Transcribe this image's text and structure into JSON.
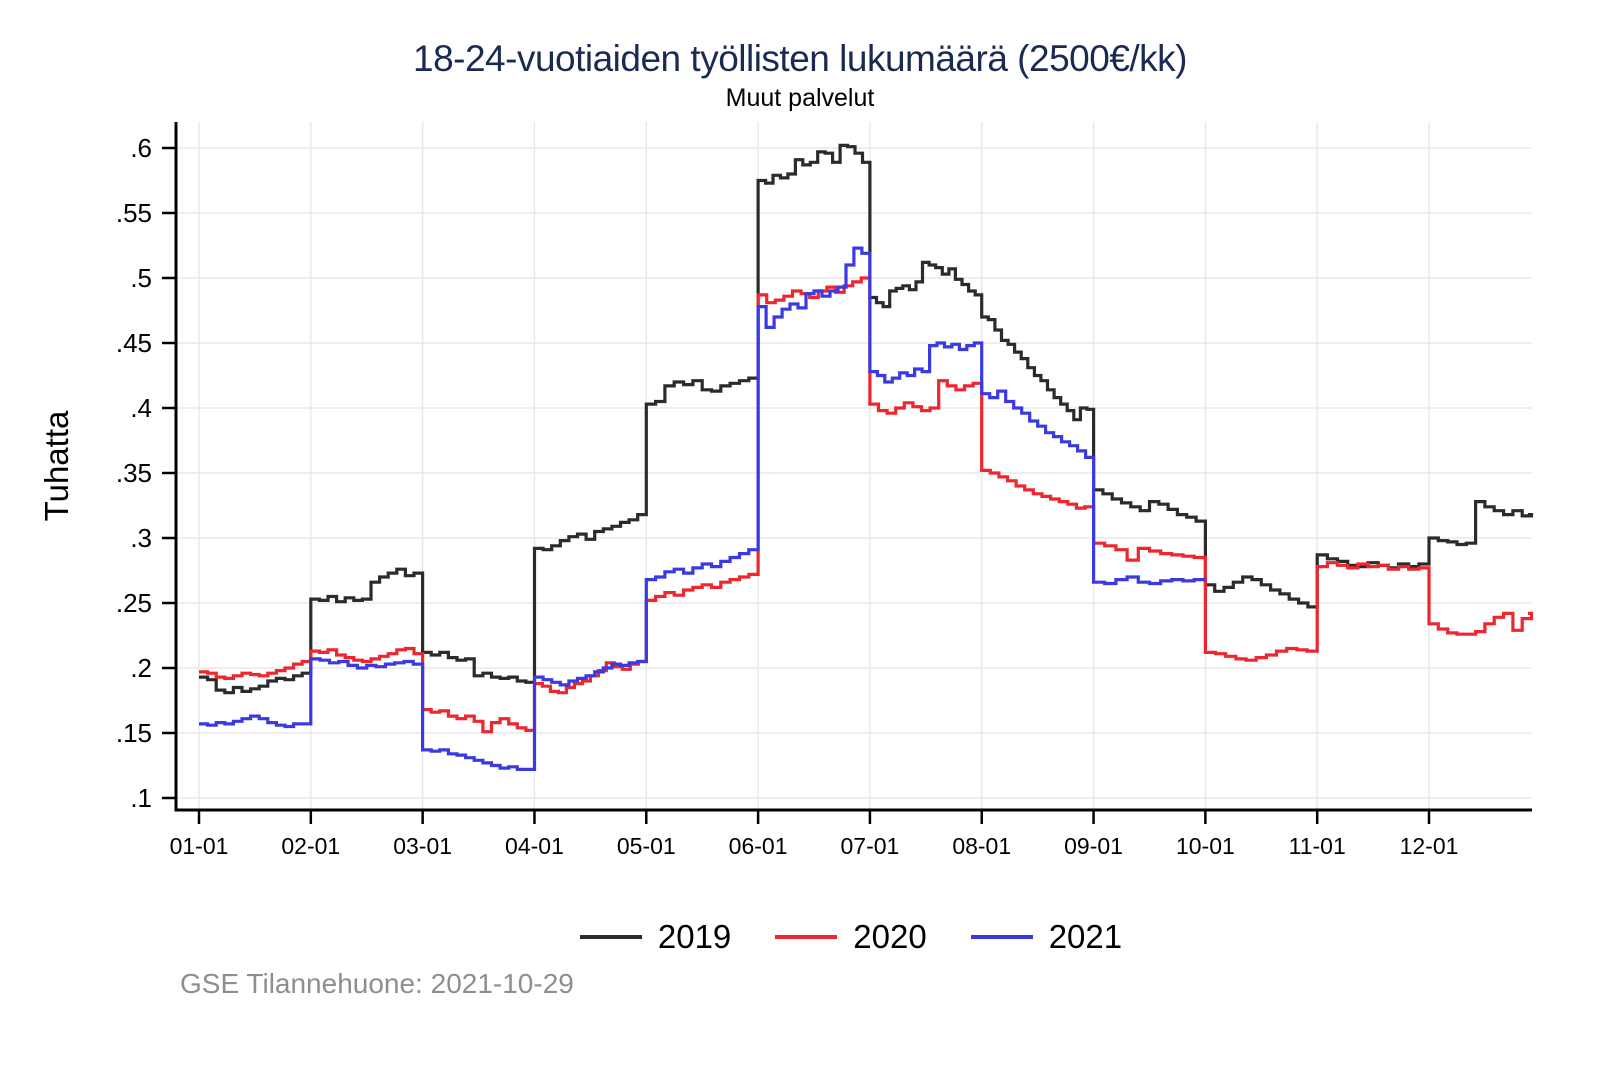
{
  "chart_data": {
    "type": "line",
    "title": "18-24-vuotiaiden työllisten lukumäärä (2500€/kk)",
    "subtitle": "Muut palvelut",
    "ylabel": "Tuhatta",
    "xlabel": "",
    "grid": true,
    "legend_position": "bottom",
    "ylim": [
      0.1,
      0.6
    ],
    "y_ticks": [
      0.6,
      0.55,
      0.5,
      0.45,
      0.4,
      0.35,
      0.3,
      0.25,
      0.2,
      0.15,
      0.1
    ],
    "y_tick_labels": [
      ".6",
      ".55",
      ".5",
      ".45",
      ".4",
      ".35",
      ".3",
      ".25",
      ".2",
      ".15",
      ".1"
    ],
    "x_tick_labels": [
      "01-01",
      "02-01",
      "03-01",
      "04-01",
      "05-01",
      "06-01",
      "07-01",
      "08-01",
      "09-01",
      "10-01",
      "11-01",
      "12-01"
    ],
    "series": [
      {
        "name": "2019",
        "color": "#2b2b2b",
        "months": [
          [
            0.193,
            0.191,
            0.183,
            0.181,
            0.185,
            0.182,
            0.184,
            0.186,
            0.19,
            0.192,
            0.191,
            0.194,
            0.196
          ],
          [
            0.253,
            0.252,
            0.255,
            0.251,
            0.254,
            0.252,
            0.253,
            0.266,
            0.27,
            0.273,
            0.276,
            0.271,
            0.273
          ],
          [
            0.212,
            0.21,
            0.212,
            0.208,
            0.206,
            0.207,
            0.194,
            0.196,
            0.193,
            0.192,
            0.193,
            0.19,
            0.189
          ],
          [
            0.292,
            0.291,
            0.294,
            0.298,
            0.301,
            0.303,
            0.299,
            0.305,
            0.307,
            0.309,
            0.312,
            0.314,
            0.318
          ],
          [
            0.403,
            0.405,
            0.417,
            0.42,
            0.418,
            0.421,
            0.414,
            0.413,
            0.417,
            0.419,
            0.421,
            0.423
          ],
          [
            0.575,
            0.573,
            0.579,
            0.577,
            0.58,
            0.591,
            0.587,
            0.589,
            0.597,
            0.596,
            0.589,
            0.602,
            0.601,
            0.596,
            0.589
          ],
          [
            0.485,
            0.481,
            0.478,
            0.49,
            0.492,
            0.494,
            0.491,
            0.497,
            0.512,
            0.51,
            0.508,
            0.503,
            0.507,
            0.499,
            0.495,
            0.49,
            0.487
          ],
          [
            0.47,
            0.468,
            0.46,
            0.452,
            0.449,
            0.443,
            0.438,
            0.431,
            0.425,
            0.421,
            0.414,
            0.408,
            0.403,
            0.398,
            0.391,
            0.4,
            0.399
          ],
          [
            0.337,
            0.334,
            0.33,
            0.327,
            0.324,
            0.321,
            0.328,
            0.326,
            0.322,
            0.318,
            0.316,
            0.313
          ],
          [
            0.264,
            0.259,
            0.262,
            0.266,
            0.27,
            0.268,
            0.264,
            0.26,
            0.257,
            0.253,
            0.25,
            0.247
          ],
          [
            0.287,
            0.284,
            0.282,
            0.279,
            0.278,
            0.281,
            0.279,
            0.277,
            0.28,
            0.278,
            0.28
          ],
          [
            0.3,
            0.298,
            0.297,
            0.295,
            0.296,
            0.328,
            0.324,
            0.321,
            0.318,
            0.321,
            0.317,
            0.318
          ]
        ]
      },
      {
        "name": "2020",
        "color": "#ee262d",
        "months": [
          [
            0.197,
            0.196,
            0.193,
            0.192,
            0.194,
            0.196,
            0.195,
            0.194,
            0.196,
            0.198,
            0.2,
            0.203,
            0.205
          ],
          [
            0.213,
            0.212,
            0.214,
            0.21,
            0.208,
            0.206,
            0.205,
            0.207,
            0.209,
            0.211,
            0.214,
            0.215,
            0.211
          ],
          [
            0.168,
            0.166,
            0.167,
            0.163,
            0.161,
            0.163,
            0.159,
            0.151,
            0.158,
            0.161,
            0.157,
            0.154,
            0.152
          ],
          [
            0.188,
            0.186,
            0.182,
            0.181,
            0.185,
            0.188,
            0.19,
            0.194,
            0.198,
            0.204,
            0.201,
            0.199,
            0.203,
            0.205
          ],
          [
            0.252,
            0.255,
            0.258,
            0.256,
            0.26,
            0.262,
            0.264,
            0.262,
            0.266,
            0.268,
            0.27,
            0.272
          ],
          [
            0.487,
            0.481,
            0.483,
            0.486,
            0.49,
            0.488,
            0.485,
            0.49,
            0.493,
            0.489,
            0.494,
            0.497,
            0.5
          ],
          [
            0.403,
            0.398,
            0.396,
            0.4,
            0.404,
            0.401,
            0.398,
            0.4,
            0.421,
            0.417,
            0.414,
            0.417,
            0.419
          ],
          [
            0.352,
            0.35,
            0.347,
            0.344,
            0.34,
            0.337,
            0.334,
            0.332,
            0.33,
            0.328,
            0.326,
            0.323,
            0.324
          ],
          [
            0.296,
            0.294,
            0.291,
            0.283,
            0.292,
            0.29,
            0.288,
            0.287,
            0.286,
            0.285
          ],
          [
            0.212,
            0.211,
            0.209,
            0.207,
            0.206,
            0.208,
            0.21,
            0.213,
            0.215,
            0.214,
            0.213
          ],
          [
            0.278,
            0.281,
            0.279,
            0.277,
            0.28,
            0.278,
            0.279,
            0.276,
            0.278,
            0.276,
            0.277
          ],
          [
            0.234,
            0.23,
            0.227,
            0.226,
            0.226,
            0.228,
            0.234,
            0.239,
            0.242,
            0.229,
            0.238,
            0.242
          ]
        ]
      },
      {
        "name": "2021",
        "color": "#3a3ae0",
        "months": [
          [
            0.157,
            0.156,
            0.158,
            0.157,
            0.159,
            0.161,
            0.163,
            0.161,
            0.158,
            0.156,
            0.155,
            0.157,
            0.157
          ],
          [
            0.207,
            0.206,
            0.204,
            0.205,
            0.202,
            0.2,
            0.202,
            0.201,
            0.203,
            0.204,
            0.205,
            0.203
          ],
          [
            0.137,
            0.136,
            0.137,
            0.134,
            0.133,
            0.131,
            0.129,
            0.127,
            0.125,
            0.123,
            0.124,
            0.122,
            0.122
          ],
          [
            0.193,
            0.191,
            0.189,
            0.187,
            0.19,
            0.192,
            0.194,
            0.197,
            0.2,
            0.203,
            0.202,
            0.204,
            0.205
          ],
          [
            0.268,
            0.27,
            0.274,
            0.276,
            0.273,
            0.277,
            0.28,
            0.278,
            0.282,
            0.285,
            0.288,
            0.291
          ],
          [
            0.478,
            0.462,
            0.47,
            0.476,
            0.48,
            0.477,
            0.488,
            0.49,
            0.486,
            0.49,
            0.493,
            0.51,
            0.523,
            0.519
          ],
          [
            0.428,
            0.425,
            0.42,
            0.423,
            0.427,
            0.425,
            0.43,
            0.428,
            0.448,
            0.45,
            0.447,
            0.449,
            0.445,
            0.448,
            0.45
          ],
          [
            0.411,
            0.408,
            0.413,
            0.405,
            0.4,
            0.396,
            0.39,
            0.386,
            0.381,
            0.378,
            0.374,
            0.371,
            0.367,
            0.362
          ],
          [
            0.266,
            0.265,
            0.268,
            0.27,
            0.266,
            0.265,
            0.267,
            0.268,
            0.267,
            0.268
          ]
        ]
      }
    ],
    "caption": "GSE Tilannehuone: 2021-10-29"
  },
  "colors": {
    "title": "#1a2b52",
    "grid": "#e8e8e8",
    "axis": "#000000",
    "caption": "#8e8e8e"
  }
}
